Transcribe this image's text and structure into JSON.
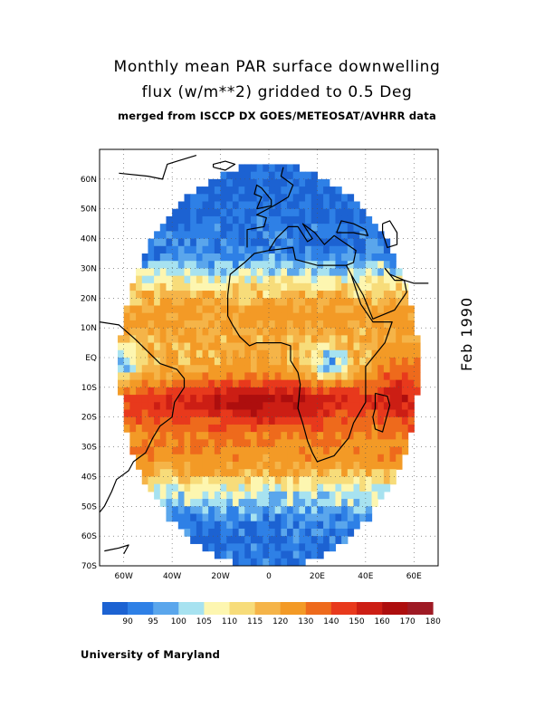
{
  "title": {
    "line1": "Monthly mean PAR surface downwelling",
    "line2": "flux (w/m**2) gridded to 0.5 Deg",
    "line3": "merged from ISCCP DX GOES/METEOSAT/AVHRR data"
  },
  "date_label": "Feb 1990",
  "credit": "University of Maryland",
  "axes": {
    "lat_ticks": [
      "60N",
      "50N",
      "40N",
      "30N",
      "20N",
      "10N",
      "EQ",
      "10S",
      "20S",
      "30S",
      "40S",
      "50S",
      "60S",
      "70S"
    ],
    "lon_ticks": [
      "60W",
      "40W",
      "20W",
      "0",
      "20E",
      "40E",
      "60E"
    ],
    "lat_range": [
      -70,
      70
    ],
    "lon_range": [
      -70,
      70
    ]
  },
  "colorbar": {
    "labels": [
      "90",
      "95",
      "100",
      "105",
      "110",
      "115",
      "120",
      "130",
      "140",
      "150",
      "160",
      "170",
      "180"
    ],
    "colors": [
      "#1c62d2",
      "#2e80e6",
      "#5aa6ec",
      "#a7e2f0",
      "#fdf6b0",
      "#f7dc7a",
      "#f5b448",
      "#f39a26",
      "#ee6a1c",
      "#e8391c",
      "#cc1e14",
      "#ad0e0e",
      "#9e1a24"
    ]
  },
  "chart_data": {
    "type": "heatmap",
    "title": "Monthly mean PAR surface downwelling flux (w/m**2) gridded to 0.5 Deg",
    "subtitle": "merged from ISCCP DX GOES/METEOSAT/AVHRR data",
    "date": "Feb 1990",
    "units": "w/m**2",
    "xlabel": "",
    "ylabel": "",
    "xlim": [
      -70,
      70
    ],
    "ylim": [
      -70,
      70
    ],
    "grid": true,
    "levels": [
      90,
      95,
      100,
      105,
      110,
      115,
      120,
      130,
      140,
      150,
      160,
      170,
      180
    ],
    "approx_zonal_pattern": [
      {
        "lat": 55,
        "value": 88
      },
      {
        "lat": 45,
        "value": 90
      },
      {
        "lat": 35,
        "value": 93
      },
      {
        "lat": 25,
        "value": 110
      },
      {
        "lat": 15,
        "value": 125
      },
      {
        "lat": 5,
        "value": 118
      },
      {
        "lat": -5,
        "value": 120
      },
      {
        "lat": -15,
        "value": 145
      },
      {
        "lat": -25,
        "value": 130
      },
      {
        "lat": -35,
        "value": 125
      },
      {
        "lat": -45,
        "value": 105
      },
      {
        "lat": -55,
        "value": 93
      },
      {
        "lat": -62,
        "value": 90
      }
    ]
  }
}
